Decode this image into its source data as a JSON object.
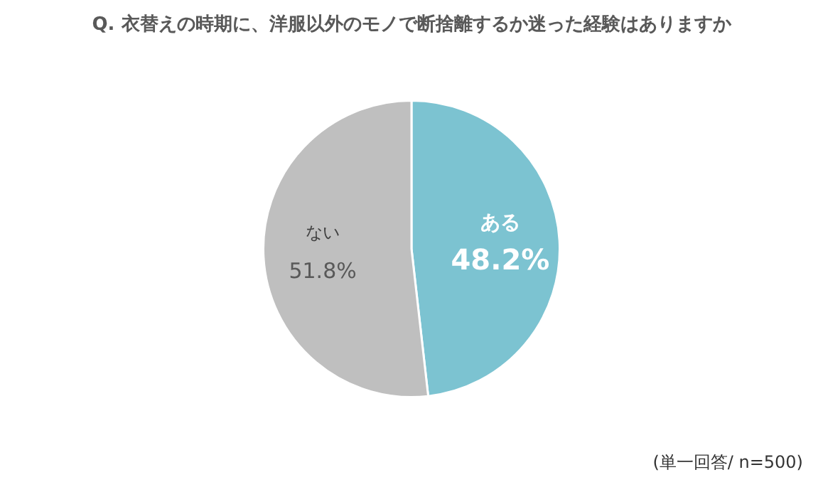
{
  "chart_data": {
    "type": "pie",
    "title": "Q. 衣替えの時期に、洋服以外のモノで断捨離するか迷った経験はありますか",
    "categories": [
      "ある",
      "ない"
    ],
    "values": [
      48.2,
      51.8
    ],
    "colors": [
      "#7cc3d1",
      "#bfbfbf"
    ],
    "value_labels": [
      "48.2%",
      "51.8%"
    ],
    "annotations": [
      "(単一回答/ n=500)"
    ]
  }
}
